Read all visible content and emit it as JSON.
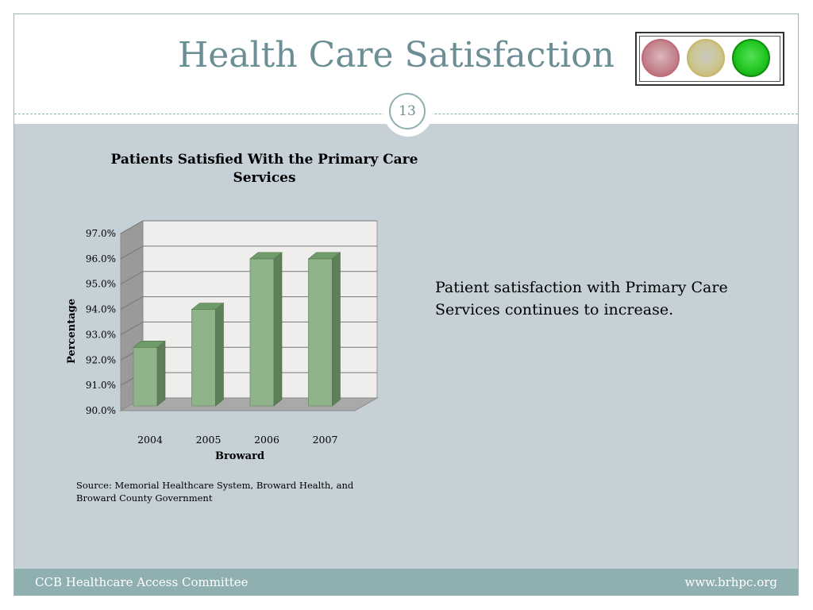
{
  "slide": {
    "title": "Health Care Satisfaction",
    "page_number": "13",
    "note": "Patient satisfaction with Primary Care Services continues to increase.",
    "source_line1": "Source:  Memorial Healthcare System, Broward Health, and",
    "source_line2": "Broward County Government"
  },
  "traffic_light": {
    "lights": [
      "red",
      "yellow",
      "green"
    ],
    "active": "green"
  },
  "footer": {
    "left": "CCB Healthcare Access Committee",
    "right": "www.brhpc.org"
  },
  "colors": {
    "title": "#6b8f95",
    "band": "#c5d1d7",
    "footer": "#8fafb1",
    "bar": "#8fb48a"
  },
  "chart_data": {
    "type": "bar",
    "title": "Patients Satisfied With the Primary Care Services",
    "xlabel": "Broward",
    "ylabel": "Percentage",
    "categories": [
      "2004",
      "2005",
      "2006",
      "2007"
    ],
    "values": [
      92.5,
      94.0,
      96.0,
      96.0
    ],
    "ylim": [
      90,
      97
    ],
    "yticks": [
      "90.0%",
      "91.0%",
      "92.0%",
      "93.0%",
      "94.0%",
      "95.0%",
      "96.0%",
      "97.0%"
    ],
    "grid": true,
    "legend": "none"
  }
}
